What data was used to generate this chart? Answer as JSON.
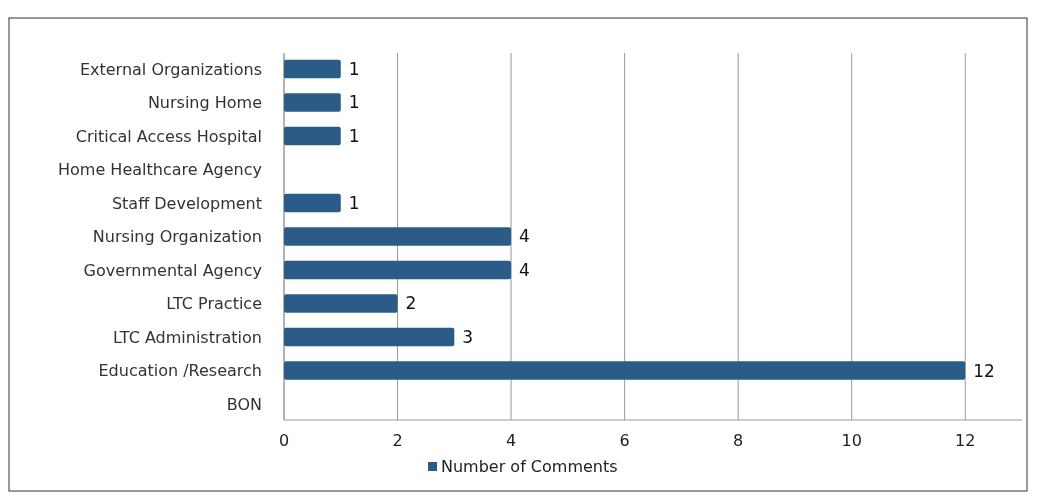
{
  "chart_data": {
    "type": "bar",
    "orientation": "horizontal",
    "categories": [
      "External Organizations",
      "Nursing Home",
      "Critical Access Hospital",
      "Home Healthcare Agency",
      "Staff Development",
      "Nursing Organization",
      "Governmental Agency",
      "LTC Practice",
      "LTC Administration",
      "Education /Research",
      "BON"
    ],
    "series": [
      {
        "name": "Number of Comments",
        "color": "#2b5c88",
        "values": [
          1,
          1,
          1,
          null,
          1,
          4,
          4,
          2,
          3,
          12,
          null
        ]
      }
    ],
    "xlim": [
      0,
      13
    ],
    "xticks": [
      0,
      2,
      4,
      6,
      8,
      10,
      12
    ],
    "grid": "x",
    "legend": "bottom",
    "data_labels": true
  }
}
